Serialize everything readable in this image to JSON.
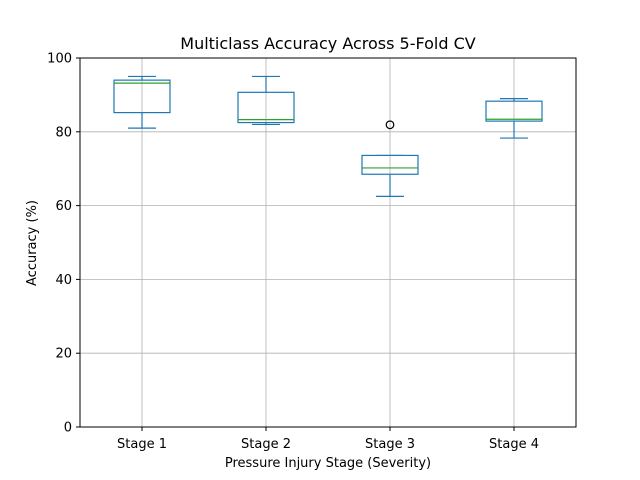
{
  "chart_data": {
    "type": "box",
    "title": "Multiclass Accuracy Across 5-Fold CV",
    "xlabel": "Pressure Injury Stage (Severity)",
    "ylabel": "Accuracy (%)",
    "ylim": [
      0,
      100
    ],
    "yticks": [
      0,
      20,
      40,
      60,
      80,
      100
    ],
    "grid": true,
    "categories": [
      "Stage 1",
      "Stage 2",
      "Stage 3",
      "Stage 4"
    ],
    "boxes": [
      {
        "category": "Stage 1",
        "whisker_low": 81.0,
        "q1": 85.2,
        "median": 93.2,
        "q3": 94.0,
        "whisker_high": 95.0,
        "outliers": []
      },
      {
        "category": "Stage 2",
        "whisker_low": 82.0,
        "q1": 82.5,
        "median": 83.3,
        "q3": 90.7,
        "whisker_high": 95.0,
        "outliers": []
      },
      {
        "category": "Stage 3",
        "whisker_low": 62.5,
        "q1": 68.5,
        "median": 70.2,
        "q3": 73.6,
        "whisker_high": 73.6,
        "outliers": [
          81.9
        ]
      },
      {
        "category": "Stage 4",
        "whisker_low": 78.3,
        "q1": 82.9,
        "median": 83.4,
        "q3": 88.3,
        "whisker_high": 89.0,
        "outliers": []
      }
    ],
    "colors": {
      "box": "#1f77b4",
      "median": "#2ca02c",
      "grid": "#b0b0b0",
      "axis": "#000000",
      "outlier_edge": "#000000",
      "background": "#ffffff"
    }
  }
}
